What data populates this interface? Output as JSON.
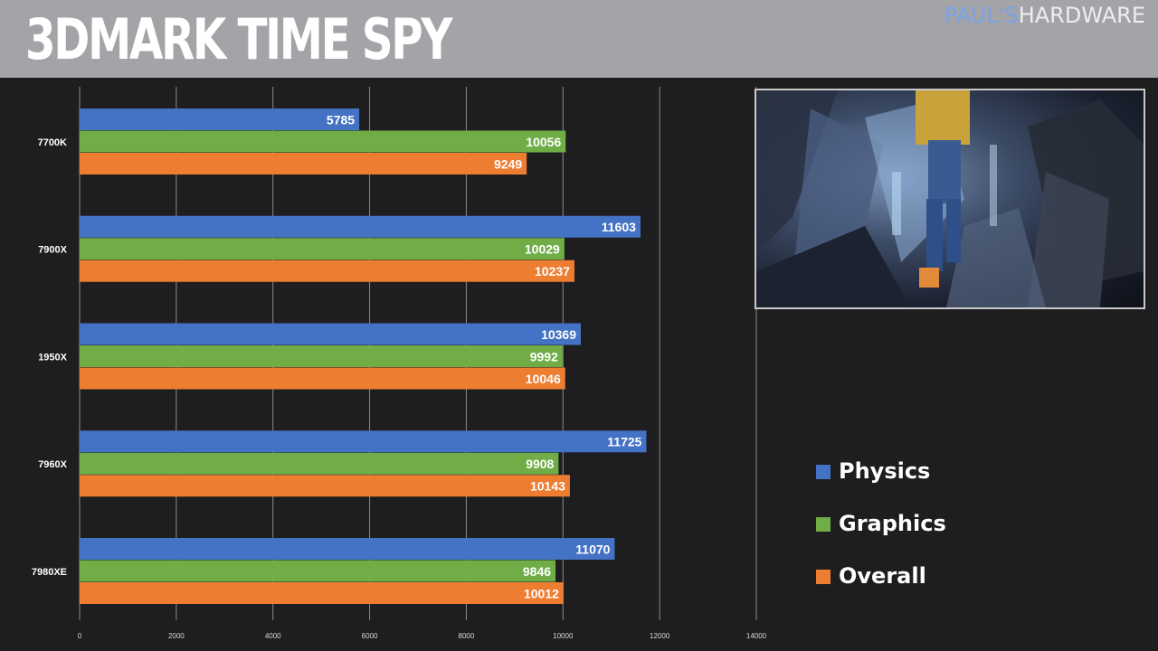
{
  "header": {
    "title": "3DMARK TIME SPY",
    "brand_part1": "PAUL'S",
    "brand_part2": "HARDWARE"
  },
  "colors": {
    "physics": "#4472c4",
    "graphics": "#70ad47",
    "overall": "#ed7d31",
    "background": "#1e1e20",
    "header": "#a4a4a8"
  },
  "game_frame": {
    "icon": "game-screenshot-image"
  },
  "chart_data": {
    "type": "bar",
    "orientation": "horizontal",
    "categories": [
      "7700K",
      "7900X",
      "1950X",
      "7960X",
      "7980XE"
    ],
    "series": [
      {
        "name": "Physics",
        "values": [
          5785,
          11603,
          10369,
          11725,
          11070
        ]
      },
      {
        "name": "Graphics",
        "values": [
          10056,
          10029,
          9992,
          9908,
          9846
        ]
      },
      {
        "name": "Overall",
        "values": [
          9249,
          10237,
          10046,
          10143,
          10012
        ]
      }
    ],
    "xlim": [
      0,
      14000
    ],
    "xticks": [
      "0",
      "2000",
      "4000",
      "6000",
      "8000",
      "10000",
      "12000",
      "14000"
    ],
    "grid": true,
    "legend": "right"
  }
}
